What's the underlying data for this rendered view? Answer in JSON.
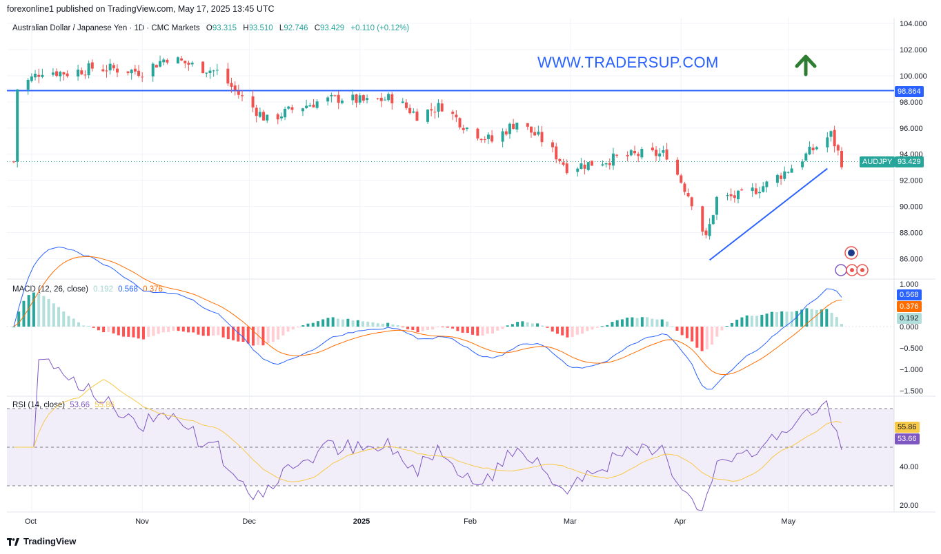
{
  "header": {
    "published_by": "forexonline1 published on TradingView.com, May 17, 2025 13:45 UTC"
  },
  "legend": {
    "symbol": "Australian Dollar / Japanese Yen · 1D · CMC Markets",
    "o_label": "O",
    "o_value": "93.315",
    "h_label": "H",
    "h_value": "93.510",
    "l_label": "L",
    "l_value": "92.746",
    "c_label": "C",
    "c_value": "93.429",
    "change": "+0.110 (+0.12%)"
  },
  "watermark": "WWW.TRADERSUP.COM",
  "price_axis": {
    "ticks": [
      "104.000",
      "102.000",
      "100.000",
      "98.000",
      "96.000",
      "94.000",
      "92.000",
      "90.000",
      "88.000",
      "86.000"
    ],
    "resistance_value": "98.864",
    "symbol_tag": "AUDJPY",
    "last_price": "93.429"
  },
  "macd": {
    "label": "MACD (12, 26, close)",
    "hist": "0.192",
    "macd": "0.568",
    "signal": "0.376",
    "ticks": [
      "1.000",
      "0.500",
      "0.000",
      "−0.500",
      "−1.000",
      "−1.500"
    ],
    "tag_macd": "0.568",
    "tag_signal": "0.376",
    "tag_hist": "0.192"
  },
  "rsi": {
    "label": "RSI (14, close)",
    "rsi": "53.66",
    "ma": "55.86",
    "ticks": [
      "40.00",
      "20.00"
    ],
    "tag_ma": "55.86",
    "tag_rsi": "53.66"
  },
  "time_axis": [
    "Oct",
    "Nov",
    "Dec",
    "2025",
    "Feb",
    "Mar",
    "Apr",
    "May"
  ],
  "footer": {
    "brand": "TradingView"
  },
  "colors": {
    "up": "#26a69a",
    "down": "#ef5350",
    "resistance": "#2962ff",
    "macd_line": "#2962ff",
    "signal_line": "#ff6d00",
    "rsi_line": "#7e57c2",
    "rsi_ma": "#f7c948",
    "arrow": "#2e7d32"
  },
  "chart_data": {
    "type": "candlestick",
    "symbol": "AUDJPY",
    "x_range": [
      "2024-09-26",
      "2025-05-16"
    ],
    "price_range": [
      85.0,
      104.8
    ],
    "resistance": 98.864,
    "trendline": [
      [
        "2025-04-09",
        85.9
      ],
      [
        "2025-05-12",
        92.9
      ]
    ],
    "close_points": [
      [
        "2024-09-27",
        99.0
      ],
      [
        "2024-10-04",
        100.4
      ],
      [
        "2024-10-11",
        100.2
      ],
      [
        "2024-10-18",
        100.6
      ],
      [
        "2024-10-25",
        100.5
      ],
      [
        "2024-11-01",
        100.3
      ],
      [
        "2024-11-08",
        101.4
      ],
      [
        "2024-11-15",
        100.8
      ],
      [
        "2024-11-22",
        100.3
      ],
      [
        "2024-11-29",
        98.3
      ],
      [
        "2024-12-06",
        96.6
      ],
      [
        "2024-12-13",
        97.4
      ],
      [
        "2024-12-20",
        98.0
      ],
      [
        "2024-12-27",
        98.3
      ],
      [
        "2025-01-03",
        98.0
      ],
      [
        "2025-01-10",
        98.3
      ],
      [
        "2025-01-17",
        97.0
      ],
      [
        "2025-01-24",
        97.7
      ],
      [
        "2025-01-31",
        96.0
      ],
      [
        "2025-02-07",
        95.0
      ],
      [
        "2025-02-14",
        96.5
      ],
      [
        "2025-02-21",
        95.1
      ],
      [
        "2025-02-28",
        93.0
      ],
      [
        "2025-03-07",
        93.3
      ],
      [
        "2025-03-14",
        93.7
      ],
      [
        "2025-03-21",
        94.0
      ],
      [
        "2025-03-28",
        94.0
      ],
      [
        "2025-04-04",
        90.4
      ],
      [
        "2025-04-08",
        87.5
      ],
      [
        "2025-04-11",
        90.6
      ],
      [
        "2025-04-18",
        90.8
      ],
      [
        "2025-04-25",
        91.7
      ],
      [
        "2025-05-02",
        93.0
      ],
      [
        "2025-05-09",
        94.6
      ],
      [
        "2025-05-13",
        95.5
      ],
      [
        "2025-05-16",
        93.429
      ]
    ],
    "macd_series": [
      {
        "name": "MACD",
        "value": 0.568
      },
      {
        "name": "Signal",
        "value": 0.376
      },
      {
        "name": "Histogram",
        "value": 0.192
      }
    ],
    "macd_range": [
      -1.6,
      1.05
    ],
    "rsi_value": 53.66,
    "rsi_ma_value": 55.86,
    "rsi_bands": [
      30,
      70
    ],
    "rsi_range": [
      20,
      80
    ]
  }
}
